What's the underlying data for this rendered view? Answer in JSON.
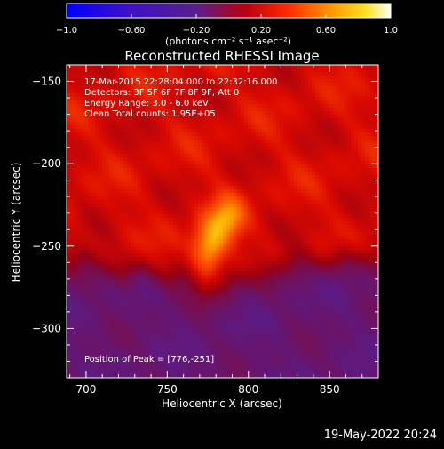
{
  "chart_data": {
    "type": "heatmap",
    "title": "Reconstructed RHESSI Image",
    "xlabel": "Heliocentric X (arcsec)",
    "ylabel": "Heliocentric Y (arcsec)",
    "xlim": [
      688,
      880
    ],
    "ylim": [
      -330,
      -140
    ],
    "x_ticks": [
      700,
      750,
      800,
      850
    ],
    "y_ticks": [
      -150,
      -200,
      -250,
      -300
    ],
    "colorbar": {
      "range": [
        -1.0,
        1.0
      ],
      "ticks": [
        -1.0,
        -0.6,
        -0.2,
        0.2,
        0.6,
        1.0
      ],
      "tick_labels": [
        "−1.0",
        "−0.60",
        "−0.20",
        "0.20",
        "0.60",
        "1.0"
      ],
      "unit_label": "(photons cm⁻² s⁻¹ asec⁻²)",
      "colormap": "hot-purple (blue → purple → red → orange → yellow → white)"
    },
    "annotations": [
      "17-Mar-2015 22:28:04.000 to 22:32:16.000",
      "Detectors: 3F 5F 6F 7F 8F 9F, Att 0",
      "Energy Range: 3.0 - 6.0 keV",
      "Clean     Total counts: 1.95E+05"
    ],
    "peak_label": "Position of Peak = [776,-251]",
    "peak": {
      "x": 776,
      "y": -251,
      "value": 1.0
    },
    "sources": [
      {
        "x": 776,
        "y": -251,
        "sx": 7,
        "sy": 11,
        "amp": 0.55
      },
      {
        "x": 787,
        "y": -233,
        "sx": 7,
        "sy": 9,
        "amp": 0.38
      }
    ],
    "background": {
      "low_level": -0.18,
      "high_level": 0.28,
      "boundary_y": [
        [
          688,
          -258
        ],
        [
          700,
          -254
        ],
        [
          712,
          -260
        ],
        [
          722,
          -266
        ],
        [
          735,
          -262
        ],
        [
          748,
          -268
        ],
        [
          760,
          -266
        ],
        [
          772,
          -276
        ],
        [
          785,
          -272
        ],
        [
          800,
          -266
        ],
        [
          815,
          -262
        ],
        [
          830,
          -256
        ],
        [
          845,
          -260
        ],
        [
          860,
          -254
        ],
        [
          880,
          -258
        ]
      ]
    },
    "footer_date": "19-May-2022 20:24"
  }
}
